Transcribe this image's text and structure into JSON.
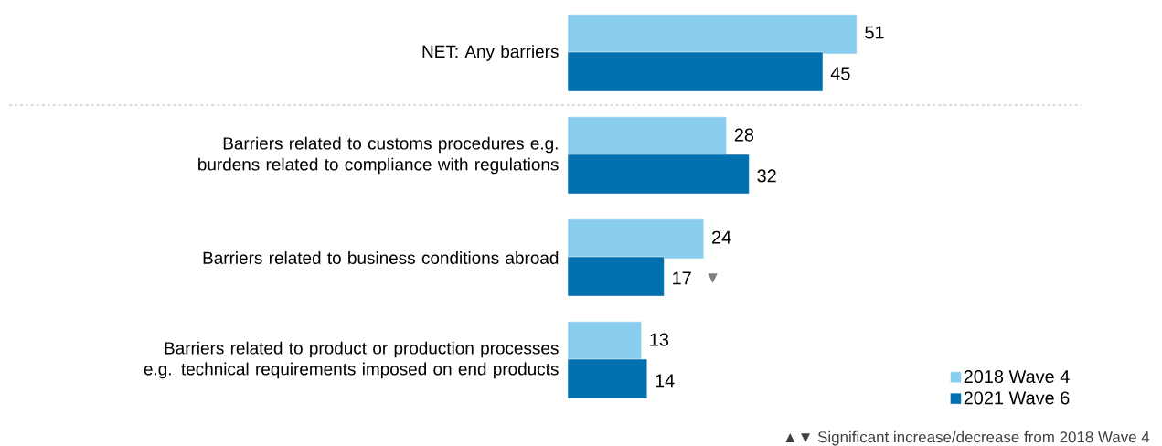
{
  "chart_data": {
    "type": "bar",
    "orientation": "horizontal",
    "categories": [
      "NET: Any barriers",
      "Barriers related to customs procedures e.g. burdens related to compliance with regulations",
      "Barriers related to business conditions abroad",
      "Barriers related to product or production processes e.g. technical requirements imposed on end products"
    ],
    "series": [
      {
        "name": "2018 Wave 4",
        "color": "#89cdee",
        "values": [
          51,
          28,
          24,
          13
        ]
      },
      {
        "name": "2021 Wave 6",
        "color": "#0070af",
        "values": [
          45,
          32,
          17,
          14
        ]
      }
    ],
    "data_labels": true,
    "legend": "bottom right",
    "tick_labels": "y",
    "annotations": [
      {
        "text": "▼",
        "x": 17,
        "y": "Barriers related to business conditions abroad"
      },
      "▲▼ Significant increase/decrease from 2018 Wave 4"
    ]
  }
}
